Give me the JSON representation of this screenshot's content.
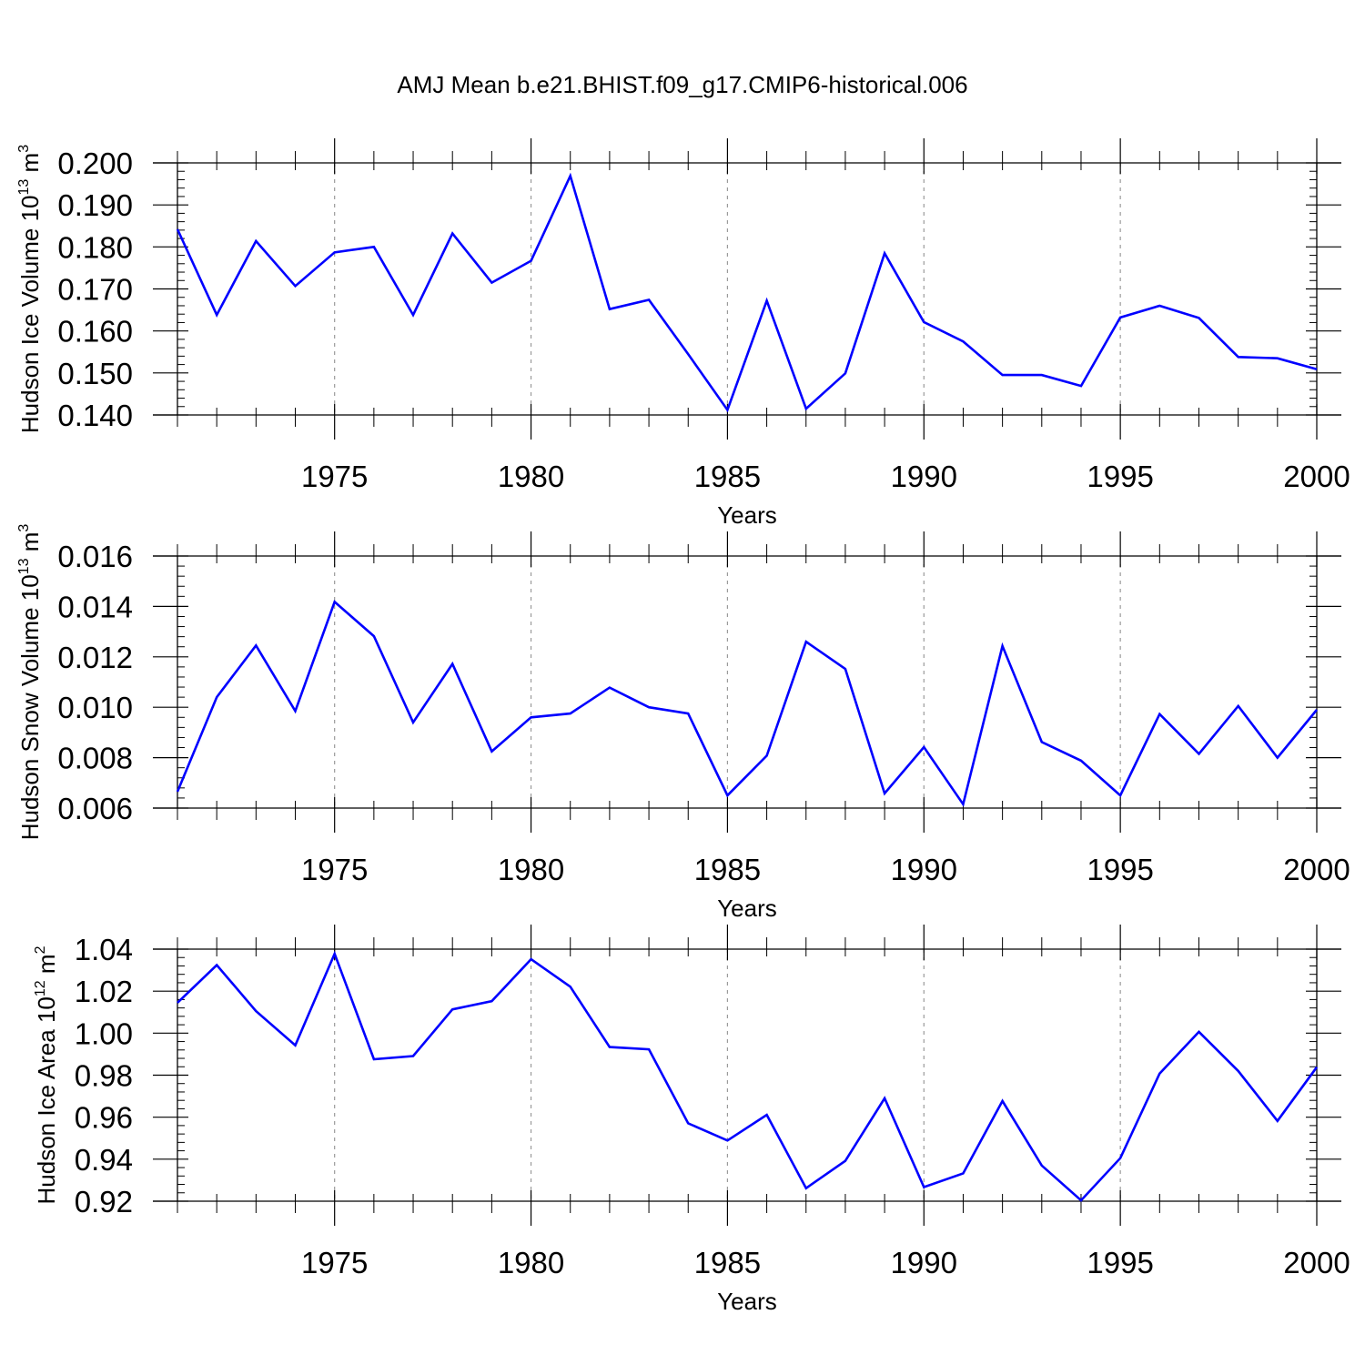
{
  "title": "AMJ Mean b.e21.BHIST.f09_g17.CMIP6-historical.006",
  "line_color": "#0000ff",
  "chart_data": [
    {
      "type": "line",
      "xlabel": "Years",
      "ylabel": "Hudson Ice Volume",
      "ylabel_unit": {
        "base": "10",
        "exp": "13",
        "unit": "m",
        "unit_exp": "3"
      },
      "xlim": [
        1971,
        2000
      ],
      "ylim": [
        0.14,
        0.2
      ],
      "xticks": [
        "1975",
        "1980",
        "1985",
        "1990",
        "1995",
        "2000"
      ],
      "yticks": [
        "0.200",
        "0.190",
        "0.180",
        "0.170",
        "0.160",
        "0.150",
        "0.140"
      ],
      "ytick_values": [
        0.2,
        0.19,
        0.18,
        0.17,
        0.16,
        0.15,
        0.14
      ],
      "x": [
        1971,
        1972,
        1973,
        1974,
        1975,
        1976,
        1977,
        1978,
        1979,
        1980,
        1981,
        1982,
        1983,
        1984,
        1985,
        1986,
        1987,
        1988,
        1989,
        1990,
        1991,
        1992,
        1993,
        1994,
        1995,
        1996,
        1997,
        1998,
        1999,
        2000
      ],
      "y": [
        0.1842,
        0.1638,
        0.1814,
        0.1707,
        0.1787,
        0.18,
        0.1638,
        0.1832,
        0.1715,
        0.1767,
        0.1969,
        0.1652,
        0.1674,
        0.1545,
        0.1412,
        0.1672,
        0.1415,
        0.1499,
        0.1785,
        0.1621,
        0.1575,
        0.1495,
        0.1495,
        0.1469,
        0.1632,
        0.166,
        0.1631,
        0.1538,
        0.1535,
        0.1509
      ]
    },
    {
      "type": "line",
      "xlabel": "Years",
      "ylabel": "Hudson Snow Volume",
      "ylabel_unit": {
        "base": "10",
        "exp": "13",
        "unit": "m",
        "unit_exp": "3"
      },
      "xlim": [
        1971,
        2000
      ],
      "ylim": [
        0.006,
        0.016
      ],
      "xticks": [
        "1975",
        "1980",
        "1985",
        "1990",
        "1995",
        "2000"
      ],
      "yticks": [
        "0.016",
        "0.014",
        "0.012",
        "0.010",
        "0.008",
        "0.006"
      ],
      "ytick_values": [
        0.016,
        0.014,
        0.012,
        0.01,
        0.008,
        0.006
      ],
      "x": [
        1971,
        1972,
        1973,
        1974,
        1975,
        1976,
        1977,
        1978,
        1979,
        1980,
        1981,
        1982,
        1983,
        1984,
        1985,
        1986,
        1987,
        1988,
        1989,
        1990,
        1991,
        1992,
        1993,
        1994,
        1995,
        1996,
        1997,
        1998,
        1999,
        2000
      ],
      "y": [
        0.00665,
        0.0104,
        0.01245,
        0.00985,
        0.01418,
        0.01282,
        0.0094,
        0.01172,
        0.00825,
        0.0096,
        0.00975,
        0.01078,
        0.01,
        0.00975,
        0.0065,
        0.00808,
        0.0126,
        0.01152,
        0.00658,
        0.00842,
        0.00615,
        0.01243,
        0.00862,
        0.00788,
        0.0065,
        0.00973,
        0.00815,
        0.01005,
        0.008,
        0.0099
      ]
    },
    {
      "type": "line",
      "xlabel": "Years",
      "ylabel": "Hudson Ice Area",
      "ylabel_unit": {
        "base": "10",
        "exp": "12",
        "unit": "m",
        "unit_exp": "2"
      },
      "xlim": [
        1971,
        2000
      ],
      "ylim": [
        0.92,
        1.04
      ],
      "xticks": [
        "1975",
        "1980",
        "1985",
        "1990",
        "1995",
        "2000"
      ],
      "yticks": [
        "1.04",
        "1.02",
        "1.00",
        "0.98",
        "0.96",
        "0.94",
        "0.92"
      ],
      "ytick_values": [
        1.04,
        1.02,
        1.0,
        0.98,
        0.96,
        0.94,
        0.92
      ],
      "x": [
        1971,
        1972,
        1973,
        1974,
        1975,
        1976,
        1977,
        1978,
        1979,
        1980,
        1981,
        1982,
        1983,
        1984,
        1985,
        1986,
        1987,
        1988,
        1989,
        1990,
        1991,
        1992,
        1993,
        1994,
        1995,
        1996,
        1997,
        1998,
        1999,
        2000
      ],
      "y": [
        1.0145,
        1.0324,
        1.0105,
        0.9942,
        1.0378,
        0.9876,
        0.9891,
        1.0113,
        1.0152,
        1.0352,
        1.0221,
        0.9934,
        0.9923,
        0.9571,
        0.9489,
        0.9611,
        0.9262,
        0.9392,
        0.969,
        0.9267,
        0.9332,
        0.9677,
        0.937,
        0.9204,
        0.9405,
        0.9808,
        1.0006,
        0.982,
        0.9582,
        0.9838
      ]
    }
  ]
}
